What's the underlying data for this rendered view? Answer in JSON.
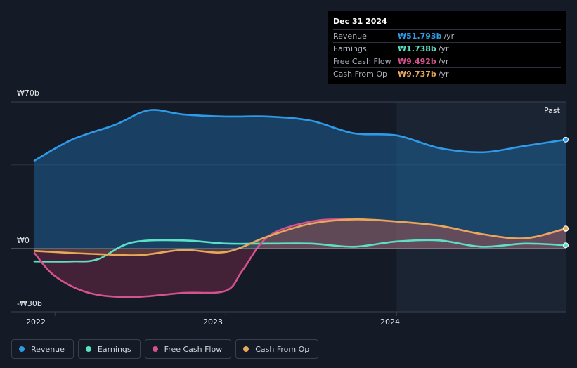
{
  "tooltip": {
    "date": "Dec 31 2024",
    "rows": [
      {
        "label": "Revenue",
        "value": "₩51.793b",
        "unit": "/yr",
        "color": "#2e9be8"
      },
      {
        "label": "Earnings",
        "value": "₩1.738b",
        "unit": "/yr",
        "color": "#5ce1c6"
      },
      {
        "label": "Free Cash Flow",
        "value": "₩9.492b",
        "unit": "/yr",
        "color": "#d4528e"
      },
      {
        "label": "Cash From Op",
        "value": "₩9.737b",
        "unit": "/yr",
        "color": "#e8a85a"
      }
    ]
  },
  "past_label": "Past",
  "legend": [
    {
      "label": "Revenue",
      "color": "#2e9be8"
    },
    {
      "label": "Earnings",
      "color": "#5ce1c6"
    },
    {
      "label": "Free Cash Flow",
      "color": "#d4528e"
    },
    {
      "label": "Cash From Op",
      "color": "#e8a85a"
    }
  ],
  "chart_data": {
    "type": "area",
    "y_tick_labels": [
      "₩70b",
      "₩0",
      "-₩30b"
    ],
    "x_tick_labels": [
      "2022",
      "2023",
      "2024"
    ],
    "ylim": [
      -30,
      70
    ],
    "xlim": [
      2021.88,
      2024.99
    ],
    "past_region_start": 2024.0,
    "series": [
      {
        "name": "Revenue",
        "color": "#2e9be8",
        "x": [
          2021.88,
          2022.1,
          2022.35,
          2022.55,
          2022.75,
          2023.0,
          2023.25,
          2023.5,
          2023.75,
          2024.0,
          2024.25,
          2024.5,
          2024.75,
          2024.99
        ],
        "y": [
          42,
          52,
          59,
          66,
          64,
          63,
          63,
          61,
          55,
          54,
          48,
          46,
          49,
          52
        ]
      },
      {
        "name": "Earnings",
        "color": "#5ce1c6",
        "x": [
          2021.88,
          2022.1,
          2022.25,
          2022.45,
          2022.75,
          2023.0,
          2023.25,
          2023.5,
          2023.75,
          2024.0,
          2024.25,
          2024.5,
          2024.75,
          2024.99
        ],
        "y": [
          -6,
          -6,
          -5,
          3,
          4,
          2.5,
          2.5,
          2.5,
          1.0,
          3.5,
          4.0,
          1.0,
          2.5,
          1.7
        ]
      },
      {
        "name": "Free Cash Flow",
        "color": "#d4528e",
        "x": [
          2021.88,
          2022.0,
          2022.2,
          2022.45,
          2022.75,
          2023.0,
          2023.1,
          2023.25,
          2023.5,
          2023.75,
          2024.0,
          2024.25,
          2024.5,
          2024.75,
          2024.99
        ],
        "y": [
          -2,
          -13,
          -21,
          -23,
          -21,
          -20,
          -10,
          6,
          13,
          14,
          13,
          11,
          7,
          5,
          9.5
        ]
      },
      {
        "name": "Cash From Op",
        "color": "#e8a85a",
        "x": [
          2021.88,
          2022.1,
          2022.25,
          2022.5,
          2022.75,
          2023.0,
          2023.25,
          2023.5,
          2023.75,
          2024.0,
          2024.25,
          2024.5,
          2024.75,
          2024.99
        ],
        "y": [
          -1,
          -2,
          -2.5,
          -3,
          -0.5,
          -1.5,
          6,
          12,
          14,
          13,
          11,
          7,
          5,
          9.7
        ]
      }
    ]
  }
}
